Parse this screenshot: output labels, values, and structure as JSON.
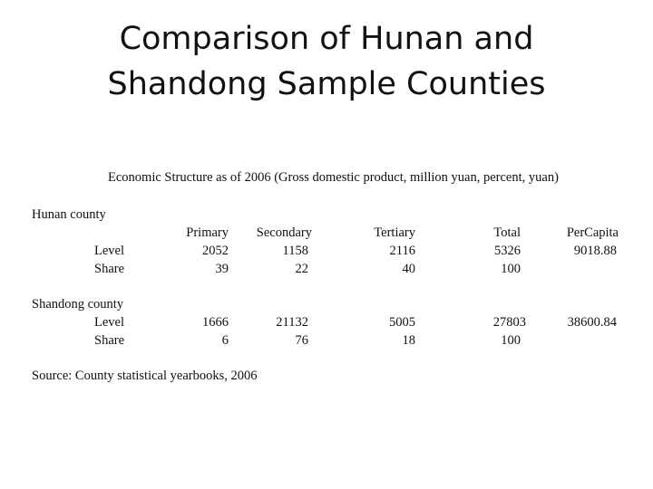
{
  "title_lines": [
    "Comparison of Hunan and",
    "Shandong Sample Counties"
  ],
  "table": {
    "caption": "Economic Structure as of 2006 (Gross domestic product, million yuan, percent, yuan)",
    "columns": [
      "Primary",
      "Secondary",
      "Tertiary",
      "Total",
      "PerCapita"
    ],
    "groups": [
      {
        "name": "Hunan county",
        "rows": [
          {
            "label": "Level",
            "values": [
              "2052",
              "1158",
              "2116",
              "5326",
              "9018.88"
            ]
          },
          {
            "label": "Share",
            "values": [
              "39",
              "22",
              "40",
              "100",
              ""
            ]
          }
        ]
      },
      {
        "name": "Shandong county",
        "rows": [
          {
            "label": "Level",
            "values": [
              "1666",
              "21132",
              "5005",
              "27803",
              "38600.84"
            ]
          },
          {
            "label": "Share",
            "values": [
              "6",
              "76",
              "18",
              "100",
              ""
            ]
          }
        ]
      }
    ],
    "source": "Source: County statistical yearbooks, 2006"
  }
}
